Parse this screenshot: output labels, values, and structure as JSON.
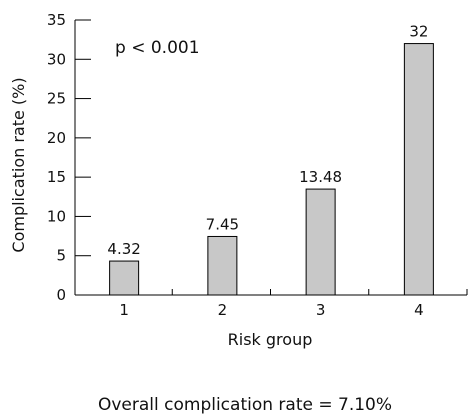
{
  "chart_data": {
    "type": "bar",
    "categories": [
      "1",
      "2",
      "3",
      "4"
    ],
    "values": [
      4.32,
      7.45,
      13.48,
      32
    ],
    "data_labels": [
      "4.32",
      "7.45",
      "13.48",
      "32"
    ],
    "xlabel": "Risk group",
    "ylabel": "Complication rate (%)",
    "ylim": [
      0,
      35
    ],
    "yticks": [
      0,
      5,
      10,
      15,
      20,
      25,
      30,
      35
    ],
    "annotation": "p < 0.001",
    "footnote": "Overall complication rate = 7.10%",
    "grid": false,
    "bar_color": "#c8c8c8",
    "bar_edge_color": "#000000"
  }
}
